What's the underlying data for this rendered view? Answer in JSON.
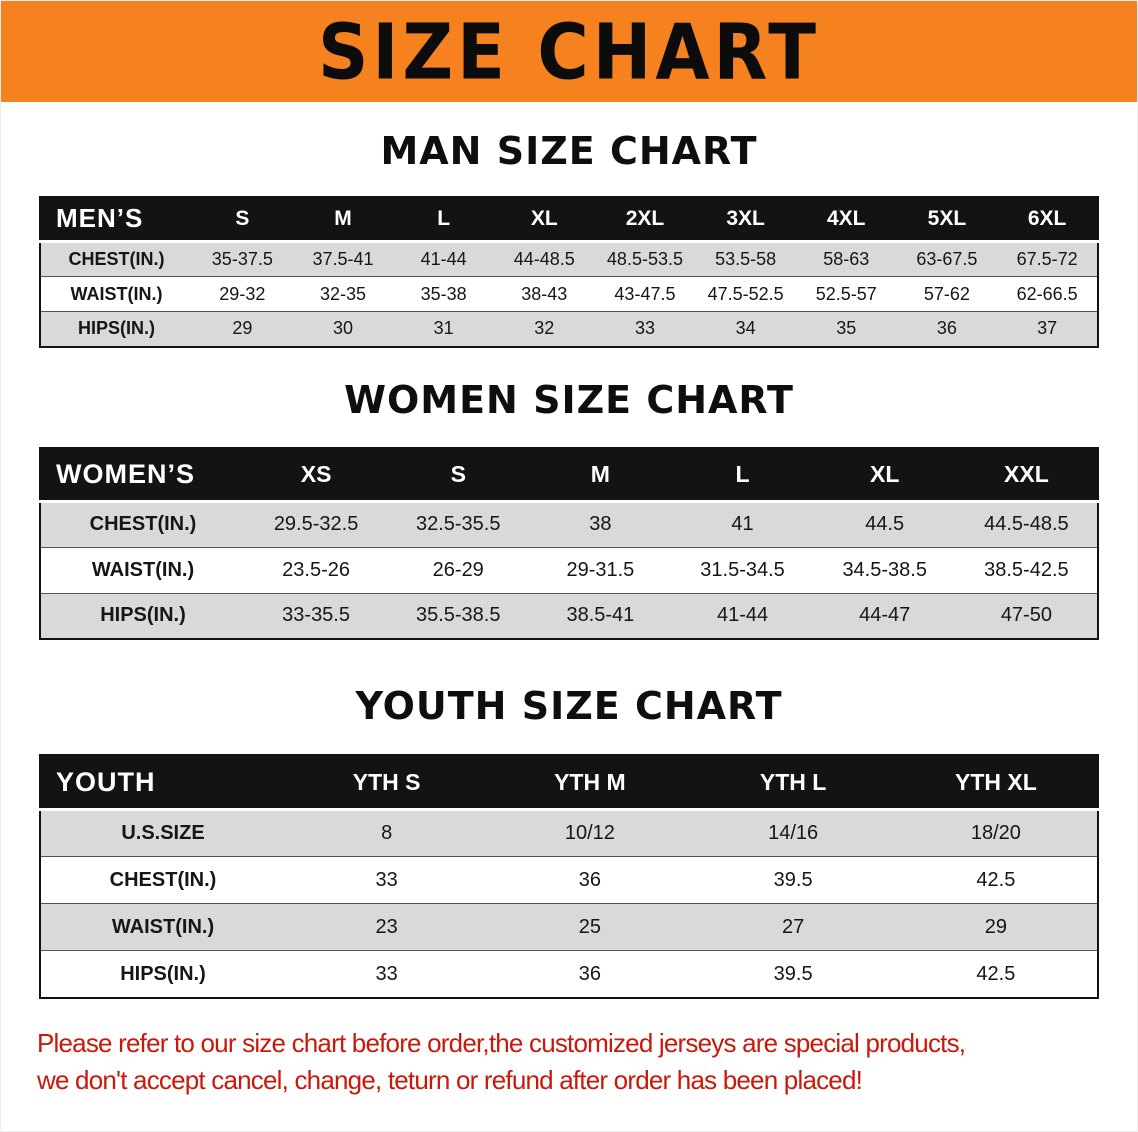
{
  "banner": {
    "title": "SIZE CHART"
  },
  "men": {
    "heading": "MAN SIZE CHART",
    "header": [
      "MEN’S",
      "S",
      "M",
      "L",
      "XL",
      "2XL",
      "3XL",
      "4XL",
      "5XL",
      "6XL"
    ],
    "rows": [
      {
        "label": "CHEST(IN.)",
        "values": [
          "35-37.5",
          "37.5-41",
          "41-44",
          "44-48.5",
          "48.5-53.5",
          "53.5-58",
          "58-63",
          "63-67.5",
          "67.5-72"
        ]
      },
      {
        "label": "WAIST(IN.)",
        "values": [
          "29-32",
          "32-35",
          "35-38",
          "38-43",
          "43-47.5",
          "47.5-52.5",
          "52.5-57",
          "57-62",
          "62-66.5"
        ]
      },
      {
        "label": "HIPS(IN.)",
        "values": [
          "29",
          "30",
          "31",
          "32",
          "33",
          "34",
          "35",
          "36",
          "37"
        ]
      }
    ]
  },
  "women": {
    "heading": "WOMEN SIZE CHART",
    "header": [
      "WOMEN’S",
      "XS",
      "S",
      "M",
      "L",
      "XL",
      "XXL"
    ],
    "rows": [
      {
        "label": "CHEST(IN.)",
        "values": [
          "29.5-32.5",
          "32.5-35.5",
          "38",
          "41",
          "44.5",
          "44.5-48.5"
        ]
      },
      {
        "label": "WAIST(IN.)",
        "values": [
          "23.5-26",
          "26-29",
          "29-31.5",
          "31.5-34.5",
          "34.5-38.5",
          "38.5-42.5"
        ]
      },
      {
        "label": "HIPS(IN.)",
        "values": [
          "33-35.5",
          "35.5-38.5",
          "38.5-41",
          "41-44",
          "44-47",
          "47-50"
        ]
      }
    ]
  },
  "youth": {
    "heading": "YOUTH SIZE CHART",
    "header": [
      "YOUTH",
      "YTH S",
      "YTH M",
      "YTH L",
      "YTH XL"
    ],
    "rows": [
      {
        "label": "U.S.SIZE",
        "values": [
          "8",
          "10/12",
          "14/16",
          "18/20"
        ]
      },
      {
        "label": "CHEST(IN.)",
        "values": [
          "33",
          "36",
          "39.5",
          "42.5"
        ]
      },
      {
        "label": "WAIST(IN.)",
        "values": [
          "23",
          "25",
          "27",
          "29"
        ]
      },
      {
        "label": "HIPS(IN.)",
        "values": [
          "33",
          "36",
          "39.5",
          "42.5"
        ]
      }
    ]
  },
  "footer": {
    "line1": "Please refer to our size chart before order,the customized jerseys are special products,",
    "line2": "we don't accept cancel, change, teturn or refund after order has been placed!"
  },
  "colors": {
    "banner_bg": "#f5821f",
    "table_header_bg": "#131313",
    "row_stripe": "#d9d9d9",
    "note_red": "#c9190c"
  }
}
